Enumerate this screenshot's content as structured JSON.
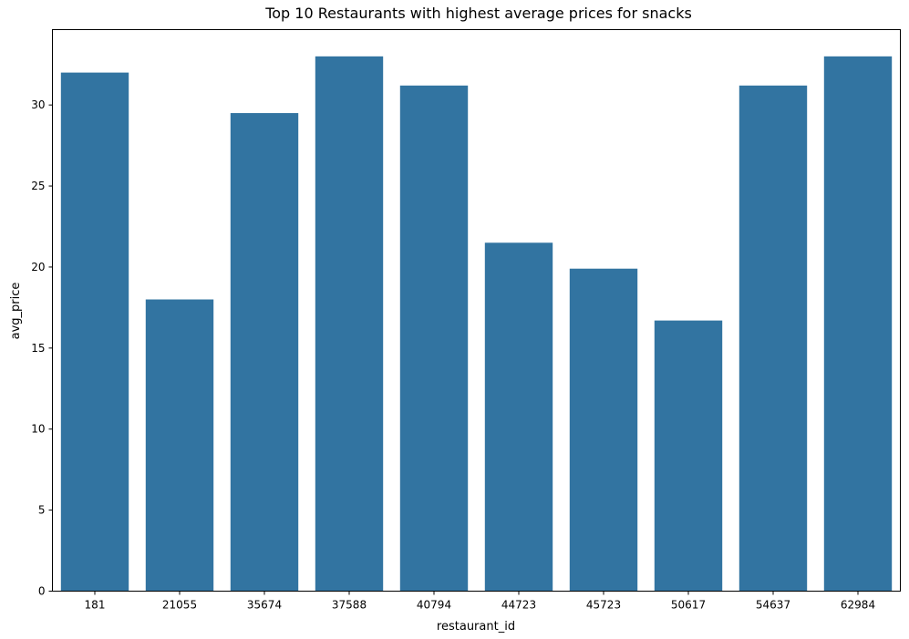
{
  "chart_data": {
    "type": "bar",
    "title": "Top 10 Restaurants with highest average prices for snacks",
    "xlabel": "restaurant_id",
    "ylabel": "avg_price",
    "categories": [
      "181",
      "21055",
      "35674",
      "37588",
      "40794",
      "44723",
      "45723",
      "50617",
      "54637",
      "62984"
    ],
    "values": [
      32.0,
      18.0,
      29.5,
      33.0,
      31.2,
      21.5,
      19.9,
      16.7,
      31.2,
      33.0
    ],
    "ylim": [
      0,
      34.65
    ],
    "yticks": [
      0,
      5,
      10,
      15,
      20,
      25,
      30
    ],
    "grid": false,
    "legend": "none",
    "bar_color": "#3274a1"
  }
}
